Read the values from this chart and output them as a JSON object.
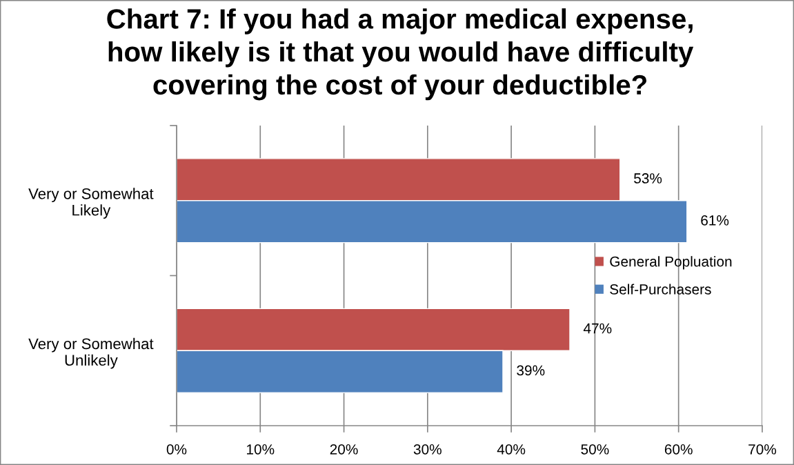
{
  "chart_data": {
    "type": "bar",
    "orientation": "horizontal",
    "title": "Chart 7: If you had a major medical expense,\nhow likely is it that you would have difficulty\ncovering the cost of your deductible?",
    "categories": [
      "Very or Somewhat\nLikely",
      "Very or Somewhat\nUnlikely"
    ],
    "series": [
      {
        "name": "General Popluation",
        "color": "#c0504d",
        "values": [
          53,
          47
        ],
        "value_labels": [
          "53%",
          "47%"
        ]
      },
      {
        "name": "Self-Purchasers",
        "color": "#4f81bd",
        "values": [
          61,
          39
        ],
        "value_labels": [
          "61%",
          "39%"
        ]
      }
    ],
    "xlim": [
      0,
      70
    ],
    "xticks": [
      {
        "value": 0,
        "label": "0%"
      },
      {
        "value": 10,
        "label": "10%"
      },
      {
        "value": 20,
        "label": "20%"
      },
      {
        "value": 30,
        "label": "30%"
      },
      {
        "value": 40,
        "label": "40%"
      },
      {
        "value": 50,
        "label": "50%"
      },
      {
        "value": 60,
        "label": "60%"
      },
      {
        "value": 70,
        "label": "70%"
      }
    ],
    "grid": "x",
    "legend": "right"
  }
}
